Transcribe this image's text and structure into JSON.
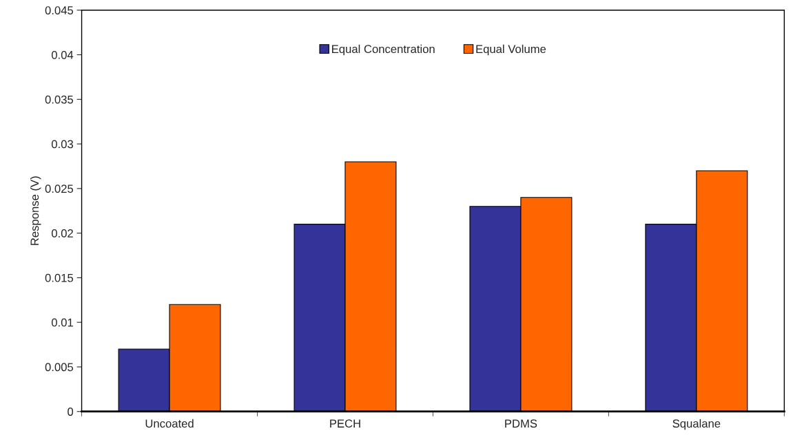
{
  "chart_data": {
    "type": "bar",
    "ylabel": "Response (V)",
    "categories": [
      "Uncoated",
      "PECH",
      "PDMS",
      "Squalane"
    ],
    "series": [
      {
        "name": "Equal Concentration",
        "color": "#333399",
        "values": [
          0.007,
          0.021,
          0.023,
          0.021
        ]
      },
      {
        "name": "Equal Volume",
        "color": "#ff6600",
        "values": [
          0.012,
          0.028,
          0.024,
          0.027
        ]
      }
    ],
    "ylim": [
      0,
      0.045
    ],
    "yticks": [
      0,
      0.005,
      0.01,
      0.015,
      0.02,
      0.025,
      0.03,
      0.035,
      0.04,
      0.045
    ],
    "grid": false,
    "legend": "top"
  }
}
